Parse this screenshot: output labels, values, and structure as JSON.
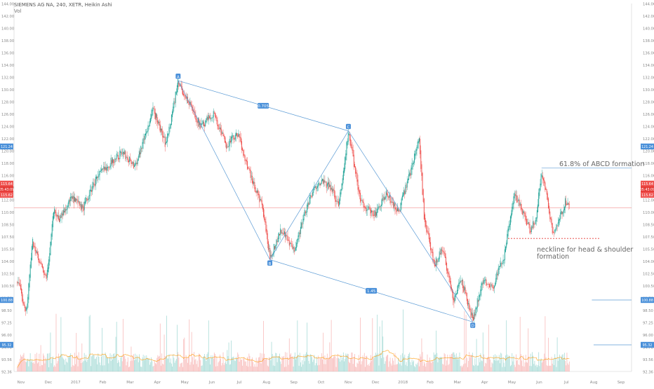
{
  "header": {
    "symbol_line": "SIEMENS AG NA, 240, XETR, Heikin Ashi",
    "volume_label": "Vol"
  },
  "colors": {
    "bull": "#26a69a",
    "bear": "#ef5350",
    "pattern_line": "#5b9bd5",
    "price_line": "#ef5350",
    "volume_ma": "#ff9800",
    "label_bg": "#4a90d9",
    "neckline": "#e53935"
  },
  "chart_data": {
    "type": "candlestick",
    "y_axis": {
      "min": 92.5,
      "max": 144.5,
      "ticks": [
        "144.00",
        "142.00",
        "140.00",
        "138.00",
        "136.00",
        "134.00",
        "132.00",
        "130.00",
        "128.00",
        "126.00",
        "124.00",
        "122.00",
        "120.00",
        "118.00",
        "116.00",
        "114.00",
        "112.00",
        "110.00",
        "108.50",
        "107.50",
        "105.50",
        "104.00",
        "102.50",
        "100.50",
        "99.76",
        "98.50",
        "97.25",
        "96.00",
        "94.76",
        "93.56",
        "92.36"
      ]
    },
    "x_axis": {
      "labels": [
        "Nov",
        "Dec",
        "2017",
        "Feb",
        "Mar",
        "Apr",
        "May",
        "Jun",
        "Jul",
        "Aug",
        "Sep",
        "Oct",
        "Nov",
        "Dec",
        "2018",
        "Feb",
        "Mar",
        "Apr",
        "May",
        "Jun",
        "Jul",
        "Aug",
        "Sep"
      ]
    },
    "price_tags": {
      "left": [
        "121.24",
        "115.64",
        "05:43:09",
        "115.62",
        "100.88",
        "95.32"
      ],
      "right": [
        "121.24",
        "115.64",
        "05:43:09",
        "115.62",
        "100.88",
        "95.32"
      ]
    },
    "current_price": 115.64,
    "abcd_pattern": {
      "points": [
        {
          "label": "A",
          "date": "2017-04-28",
          "price": 133.6
        },
        {
          "label": "B",
          "date": "2017-08-10",
          "price": 108.3
        },
        {
          "label": "C",
          "date": "2017-11-07",
          "price": 126.5
        },
        {
          "label": "D",
          "date": "2018-03-28",
          "price": 99.5
        }
      ],
      "ratios": [
        "0.705",
        "1.45"
      ]
    },
    "price_path": [
      {
        "date": "2016-10-27",
        "price": 105.5
      },
      {
        "date": "2016-11-07",
        "price": 101.0
      },
      {
        "date": "2016-11-14",
        "price": 111.0
      },
      {
        "date": "2016-11-21",
        "price": 108.0
      },
      {
        "date": "2016-11-30",
        "price": 105.5
      },
      {
        "date": "2016-12-08",
        "price": 115.5
      },
      {
        "date": "2016-12-14",
        "price": 114.0
      },
      {
        "date": "2016-12-28",
        "price": 117.0
      },
      {
        "date": "2017-01-10",
        "price": 115.5
      },
      {
        "date": "2017-01-26",
        "price": 120.0
      },
      {
        "date": "2017-02-10",
        "price": 122.0
      },
      {
        "date": "2017-02-24",
        "price": 123.5
      },
      {
        "date": "2017-03-10",
        "price": 121.5
      },
      {
        "date": "2017-03-31",
        "price": 129.5
      },
      {
        "date": "2017-04-14",
        "price": 124.5
      },
      {
        "date": "2017-04-28",
        "price": 133.3
      },
      {
        "date": "2017-05-10",
        "price": 130.5
      },
      {
        "date": "2017-05-24",
        "price": 127.0
      },
      {
        "date": "2017-06-07",
        "price": 129.0
      },
      {
        "date": "2017-06-21",
        "price": 124.5
      },
      {
        "date": "2017-07-05",
        "price": 126.0
      },
      {
        "date": "2017-07-19",
        "price": 120.0
      },
      {
        "date": "2017-08-01",
        "price": 116.0
      },
      {
        "date": "2017-08-10",
        "price": 108.7
      },
      {
        "date": "2017-08-23",
        "price": 112.5
      },
      {
        "date": "2017-09-06",
        "price": 109.5
      },
      {
        "date": "2017-09-20",
        "price": 115.5
      },
      {
        "date": "2017-10-04",
        "price": 119.5
      },
      {
        "date": "2017-10-18",
        "price": 118.5
      },
      {
        "date": "2017-10-27",
        "price": 116.0
      },
      {
        "date": "2017-11-07",
        "price": 126.3
      },
      {
        "date": "2017-11-21",
        "price": 116.5
      },
      {
        "date": "2017-12-06",
        "price": 114.5
      },
      {
        "date": "2017-12-20",
        "price": 117.5
      },
      {
        "date": "2018-01-03",
        "price": 115.0
      },
      {
        "date": "2018-01-17",
        "price": 121.0
      },
      {
        "date": "2018-01-26",
        "price": 125.8
      },
      {
        "date": "2018-02-01",
        "price": 114.0
      },
      {
        "date": "2018-02-12",
        "price": 107.5
      },
      {
        "date": "2018-02-22",
        "price": 110.0
      },
      {
        "date": "2018-03-06",
        "price": 102.5
      },
      {
        "date": "2018-03-15",
        "price": 105.5
      },
      {
        "date": "2018-03-28",
        "price": 99.8
      },
      {
        "date": "2018-04-09",
        "price": 105.5
      },
      {
        "date": "2018-04-20",
        "price": 104.5
      },
      {
        "date": "2018-05-03",
        "price": 109.0
      },
      {
        "date": "2018-05-14",
        "price": 117.5
      },
      {
        "date": "2018-05-24",
        "price": 115.0
      },
      {
        "date": "2018-06-01",
        "price": 112.5
      },
      {
        "date": "2018-06-08",
        "price": 114.0
      },
      {
        "date": "2018-06-14",
        "price": 121.0
      },
      {
        "date": "2018-06-21",
        "price": 116.5
      },
      {
        "date": "2018-06-27",
        "price": 112.0
      },
      {
        "date": "2018-07-03",
        "price": 113.5
      },
      {
        "date": "2018-07-11",
        "price": 116.5
      },
      {
        "date": "2018-07-16",
        "price": 115.6
      }
    ],
    "annotations": {
      "fib_text": "61.8% of ABCD formation",
      "fib_level": 121.24,
      "fib_start_date": "2018-06-14",
      "neckline_text_1": "neckline for head & shoulder",
      "neckline_text_2": "formation",
      "neckline_level": 111.3,
      "neckline_start_date": "2018-05-07",
      "neckline_end_date": "2018-08-20"
    },
    "volume_pane_lines": [
      {
        "label": "100.88",
        "start_date": "2018-08-10"
      },
      {
        "label": "95.32",
        "start_date": "2018-08-12"
      }
    ]
  }
}
